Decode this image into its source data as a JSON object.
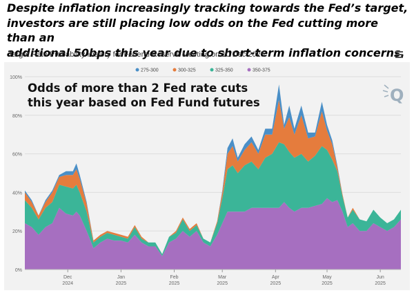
{
  "headline": {
    "line1": "Despite inflation increasingly tracking towards the Fed’s target,",
    "line2": "investors are still placing low odds on the Fed cutting more than an",
    "line3": "additional 50bps this year due to short-term inflation concerns."
  },
  "chart_header": {
    "title": "Target Rate Probability History for Federal Reserve Meeting on 10 Dec 2025",
    "menu_icon": "hamburger-menu-icon"
  },
  "overlay": {
    "line1": "Odds of more than 2 Fed rate cuts",
    "line2": "this year based on Fed Fund futures"
  },
  "watermark": {
    "icon": "quikstrike-q-logo-icon",
    "color": "#9fb0be"
  },
  "chart_data": {
    "type": "area",
    "stacked": true,
    "title": "Target Rate Probability History for Federal Reserve Meeting on 10 Dec 2025",
    "xlabel": "",
    "ylabel": "",
    "ylim": [
      0,
      100
    ],
    "yunit": "%",
    "grid": true,
    "legend_position": "top-center",
    "y_ticks": [
      {
        "value": 0,
        "label": "0%"
      },
      {
        "value": 20,
        "label": "20%"
      },
      {
        "value": 40,
        "label": "40%"
      },
      {
        "value": 60,
        "label": "60%"
      },
      {
        "value": 80,
        "label": "80%"
      },
      {
        "value": 100,
        "label": "100%"
      }
    ],
    "x_ticks": [
      {
        "date": "2024-12-01",
        "month": "Dec",
        "year": "2024"
      },
      {
        "date": "2025-01-01",
        "month": "Jan",
        "year": "2025"
      },
      {
        "date": "2025-02-01",
        "month": "Feb",
        "year": "2025"
      },
      {
        "date": "2025-03-01",
        "month": "Mar",
        "year": "2025"
      },
      {
        "date": "2025-04-01",
        "month": "Apr",
        "year": "2025"
      },
      {
        "date": "2025-05-01",
        "month": "May",
        "year": "2025"
      },
      {
        "date": "2025-06-01",
        "month": "Jun",
        "year": "2025"
      }
    ],
    "dates": [
      "2024-11-06",
      "2024-11-10",
      "2024-11-14",
      "2024-11-18",
      "2024-11-22",
      "2024-11-26",
      "2024-11-30",
      "2024-12-04",
      "2024-12-06",
      "2024-12-08",
      "2024-12-12",
      "2024-12-16",
      "2024-12-20",
      "2024-12-24",
      "2024-12-28",
      "2025-01-01",
      "2025-01-05",
      "2025-01-09",
      "2025-01-13",
      "2025-01-17",
      "2025-01-21",
      "2025-01-25",
      "2025-01-29",
      "2025-02-02",
      "2025-02-06",
      "2025-02-10",
      "2025-02-14",
      "2025-02-18",
      "2025-02-22",
      "2025-02-26",
      "2025-03-01",
      "2025-03-04",
      "2025-03-07",
      "2025-03-10",
      "2025-03-14",
      "2025-03-18",
      "2025-03-22",
      "2025-03-26",
      "2025-03-30",
      "2025-04-03",
      "2025-04-06",
      "2025-04-09",
      "2025-04-12",
      "2025-04-16",
      "2025-04-20",
      "2025-04-24",
      "2025-04-28",
      "2025-05-01",
      "2025-05-04",
      "2025-05-07",
      "2025-05-10",
      "2025-05-13",
      "2025-05-16",
      "2025-05-20",
      "2025-05-24",
      "2025-05-28",
      "2025-06-01",
      "2025-06-05",
      "2025-06-09",
      "2025-06-13"
    ],
    "series": [
      {
        "name": "350-375",
        "color": "#a66fc0",
        "values": [
          24,
          22,
          18,
          22,
          24,
          32,
          29,
          28,
          30,
          28,
          20,
          11,
          14,
          16,
          15,
          15,
          14,
          18,
          14,
          12,
          12,
          7,
          14,
          16,
          20,
          17,
          20,
          14,
          12,
          18,
          24,
          30,
          30,
          30,
          30,
          32,
          32,
          32,
          32,
          32,
          35,
          32,
          30,
          32,
          32,
          33,
          34,
          37,
          35,
          36,
          30,
          22,
          24,
          20,
          20,
          24,
          22,
          20,
          22,
          26
        ]
      },
      {
        "name": "325-350",
        "color": "#3bb598",
        "values": [
          12,
          10,
          8,
          10,
          11,
          12,
          14,
          14,
          14,
          12,
          10,
          3,
          3,
          3,
          3,
          2,
          2,
          4,
          2,
          2,
          2,
          1,
          3,
          3,
          6,
          3,
          3,
          2,
          2,
          6,
          13,
          22,
          24,
          20,
          24,
          24,
          20,
          26,
          28,
          34,
          30,
          29,
          28,
          28,
          24,
          26,
          30,
          25,
          22,
          15,
          8,
          5,
          7,
          6,
          5,
          7,
          5,
          4,
          4,
          5
        ]
      },
      {
        "name": "300-325",
        "color": "#e57c3d",
        "values": [
          4,
          3,
          2,
          3,
          5,
          4,
          6,
          7,
          8,
          7,
          4,
          1,
          1,
          1,
          1,
          1,
          1,
          1,
          1,
          0,
          0,
          0,
          0,
          1,
          1,
          1,
          1,
          0,
          0,
          1,
          3,
          8,
          10,
          6,
          8,
          10,
          8,
          12,
          10,
          22,
          8,
          18,
          12,
          20,
          12,
          10,
          18,
          10,
          8,
          2,
          1,
          0,
          1,
          0,
          0,
          0,
          0,
          0,
          0,
          0
        ]
      },
      {
        "name": "275-300",
        "color": "#4a8fc7",
        "values": [
          1,
          1,
          0,
          1,
          1,
          1,
          2,
          2,
          3,
          2,
          1,
          0,
          0,
          0,
          0,
          0,
          0,
          0,
          0,
          0,
          0,
          0,
          0,
          0,
          0,
          0,
          0,
          0,
          0,
          0,
          1,
          3,
          4,
          2,
          3,
          3,
          2,
          3,
          3,
          8,
          2,
          6,
          3,
          5,
          3,
          2,
          5,
          3,
          2,
          1,
          0,
          0,
          0,
          0,
          0,
          0,
          0,
          0,
          0,
          0
        ]
      }
    ]
  }
}
